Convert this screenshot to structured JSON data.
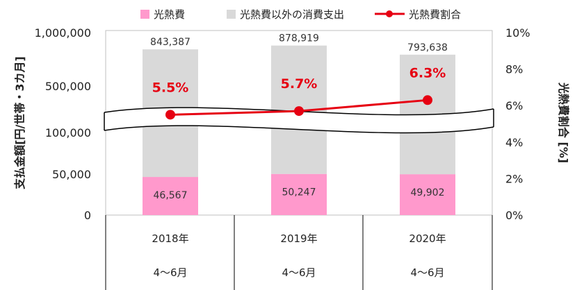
{
  "chart_data": {
    "type": "bar",
    "stacked": true,
    "broken_axis": true,
    "categories": [
      {
        "year": "2018年",
        "period": "4～6月"
      },
      {
        "year": "2019年",
        "period": "4～6月"
      },
      {
        "year": "2020年",
        "period": "4～6月"
      }
    ],
    "series": [
      {
        "name": "光熱費",
        "kind": "bar",
        "color": "#ff99cc",
        "values": [
          46567,
          50247,
          49902
        ],
        "labels": [
          "46,567",
          "50,247",
          "49,902"
        ]
      },
      {
        "name": "光熱費以外の消費支出",
        "kind": "bar",
        "color": "#d9d9d9",
        "values": [
          796820,
          828672,
          743736
        ],
        "total_labels": [
          "843,387",
          "878,919",
          "793,638"
        ]
      },
      {
        "name": "光熱費割合",
        "kind": "line",
        "axis": "right",
        "color": "#e60012",
        "values": [
          5.5,
          5.7,
          6.3
        ],
        "labels": [
          "5.5%",
          "5.7%",
          "6.3%"
        ]
      }
    ],
    "ylabel": "支払金額[円/世帯・3カ月]",
    "y2label": "光熱費割合 [%]",
    "y_ticks": [
      "0",
      "50,000",
      "100,000",
      "500,000",
      "1,000,000"
    ],
    "y_tick_values": [
      0,
      50000,
      100000,
      500000,
      1000000
    ],
    "y2_ticks": [
      "0%",
      "2%",
      "4%",
      "6%",
      "8%",
      "10%"
    ],
    "y2lim": [
      0,
      10
    ],
    "legend_position": "top",
    "grid": false
  }
}
